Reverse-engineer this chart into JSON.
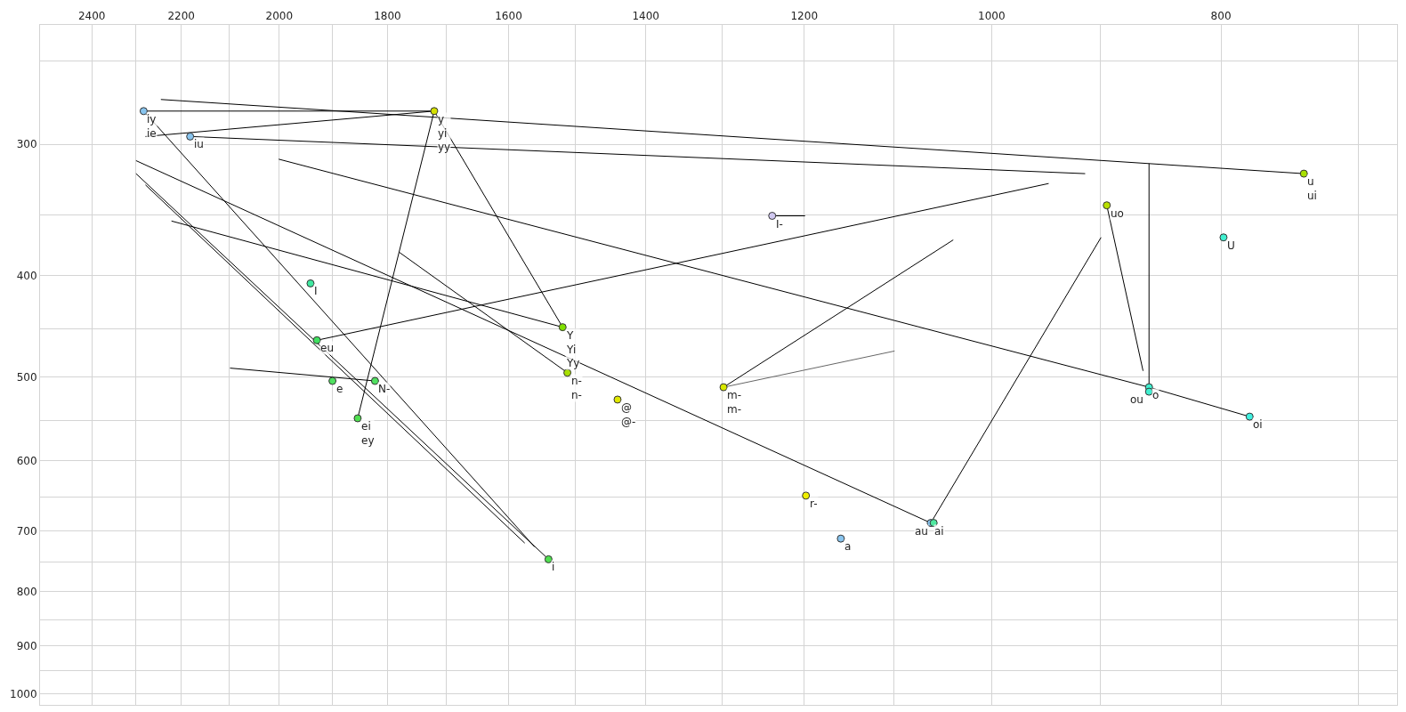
{
  "chart_data": {
    "type": "scatter",
    "xlim": [
      2524,
      674
    ],
    "ylim": [
      1025,
      231
    ],
    "log": "xy",
    "grid": true,
    "xticks": [
      {
        "value": 2400,
        "label": "2400"
      },
      {
        "value": 2300,
        "label": null
      },
      {
        "value": 2200,
        "label": "2200"
      },
      {
        "value": 2100,
        "label": null
      },
      {
        "value": 2000,
        "label": "2000"
      },
      {
        "value": 1900,
        "label": null
      },
      {
        "value": 1800,
        "label": "1800"
      },
      {
        "value": 1700,
        "label": null
      },
      {
        "value": 1600,
        "label": "1600"
      },
      {
        "value": 1500,
        "label": null
      },
      {
        "value": 1400,
        "label": "1400"
      },
      {
        "value": 1300,
        "label": null
      },
      {
        "value": 1200,
        "label": "1200"
      },
      {
        "value": 1100,
        "label": null
      },
      {
        "value": 1000,
        "label": "1000"
      },
      {
        "value": 900,
        "label": null
      },
      {
        "value": 800,
        "label": "800"
      },
      {
        "value": 700,
        "label": null
      }
    ],
    "yticks": [
      {
        "value": 250,
        "label": null
      },
      {
        "value": 300,
        "label": "300"
      },
      {
        "value": 350,
        "label": null
      },
      {
        "value": 400,
        "label": "400"
      },
      {
        "value": 450,
        "label": null
      },
      {
        "value": 500,
        "label": "500"
      },
      {
        "value": 550,
        "label": null
      },
      {
        "value": 600,
        "label": "600"
      },
      {
        "value": 650,
        "label": null
      },
      {
        "value": 700,
        "label": "700"
      },
      {
        "value": 750,
        "label": null
      },
      {
        "value": 800,
        "label": "800"
      },
      {
        "value": 850,
        "label": null
      },
      {
        "value": 900,
        "label": "900"
      },
      {
        "value": 950,
        "label": null
      },
      {
        "value": 1000,
        "label": "1000"
      }
    ],
    "series": [
      {
        "type": "line",
        "color": "#000000",
        "x": [
          2244,
          738
        ],
        "values": [
          272,
          320
        ]
      },
      {
        "type": "line",
        "color": "#000000",
        "x": [
          2282,
          1720
        ],
        "values": [
          279,
          279
        ]
      },
      {
        "type": "line",
        "color": "#000000",
        "x": [
          2278,
          1720
        ],
        "values": [
          295,
          279
        ]
      },
      {
        "type": "line",
        "color": "#000000",
        "x": [
          2181,
          913
        ],
        "values": [
          295,
          320
        ]
      },
      {
        "type": "line",
        "color": "#000000",
        "x": [
          858,
          858
        ],
        "values": [
          313,
          511
        ]
      },
      {
        "type": "line",
        "color": "#000000",
        "x": [
          2001,
          858,
          778
        ],
        "values": [
          310,
          511,
          545
        ]
      },
      {
        "type": "line",
        "color": "#000000",
        "x": [
          2299,
          1061,
          899
        ],
        "values": [
          311,
          688,
          368
        ]
      },
      {
        "type": "line",
        "color": "#000000",
        "x": [
          2282,
          1560
        ],
        "values": [
          279,
          725
        ]
      },
      {
        "type": "line",
        "color": "#000000",
        "x": [
          2299,
          1539
        ],
        "values": [
          320,
          745
        ]
      },
      {
        "type": "line",
        "color": "#000000",
        "x": [
          2278,
          1575
        ],
        "values": [
          328,
          719
        ]
      },
      {
        "type": "line",
        "color": "#000000",
        "x": [
          2221,
          1518
        ],
        "values": [
          355,
          448
        ]
      },
      {
        "type": "line",
        "color": "#000000",
        "x": [
          1780,
          1511
        ],
        "values": [
          380,
          495
        ]
      },
      {
        "type": "line",
        "color": "#000000",
        "x": [
          1928,
          946
        ],
        "values": [
          461,
          327
        ]
      },
      {
        "type": "line",
        "color": "#000000",
        "x": [
          2098,
          1822
        ],
        "values": [
          490,
          504
        ]
      },
      {
        "type": "line",
        "color": "#000000",
        "x": [
          1853,
          1720,
          1518
        ],
        "values": [
          547,
          279,
          448
        ]
      },
      {
        "type": "line",
        "color": "#000000",
        "x": [
          1298,
          1038
        ],
        "values": [
          511,
          370
        ]
      },
      {
        "type": "line",
        "color": "#666666",
        "x": [
          1298,
          1099
        ],
        "values": [
          511,
          472
        ]
      },
      {
        "type": "line",
        "color": "#000000",
        "x": [
          1238,
          1199
        ],
        "values": [
          351,
          351
        ]
      },
      {
        "type": "line",
        "color": "#000000",
        "x": [
          894,
          863
        ],
        "values": [
          343,
          493
        ]
      },
      {
        "marker": "circle",
        "x": [
          2282,
          1720,
          2181,
          738,
          1238,
          894,
          798,
          1940,
          1518,
          1928,
          1511,
          1899,
          1822,
          1298,
          858,
          858,
          1439,
          778,
          1853,
          1198,
          1061,
          1058,
          1158,
          1539
        ],
        "values": [
          279,
          279,
          295,
          320,
          351,
          343,
          368,
          407,
          448,
          461,
          495,
          504,
          504,
          511,
          511,
          516,
          525,
          545,
          547,
          648,
          688,
          688,
          712,
          745
        ],
        "colors": [
          "#88c4ee",
          "#d4e000",
          "#88c4ee",
          "#a8e000",
          "#d0c8f0",
          "#b8e000",
          "#40f0d0",
          "#40e8a0",
          "#80e000",
          "#40e060",
          "#a8e000",
          "#50e060",
          "#50e060",
          "#d8e800",
          "#40f0d0",
          "#40f0d0",
          "#e0e800",
          "#40f0e0",
          "#50e050",
          "#f0f000",
          "#88c4ee",
          "#50e8a0",
          "#88c4ee",
          "#50e050"
        ]
      }
    ],
    "annotations": [
      {
        "text": "iy\nie",
        "x": 2282,
        "y": 279
      },
      {
        "text": "y\nyi\nyy",
        "x": 1720,
        "y": 279
      },
      {
        "text": "iu",
        "x": 2181,
        "y": 295
      },
      {
        "text": "u\nui",
        "x": 738,
        "y": 320
      },
      {
        "text": "I-",
        "x": 1238,
        "y": 351
      },
      {
        "text": "uo",
        "x": 894,
        "y": 343
      },
      {
        "text": "U",
        "x": 798,
        "y": 368
      },
      {
        "text": "I",
        "x": 1940,
        "y": 407
      },
      {
        "text": "Y\nYi\nYy",
        "x": 1518,
        "y": 448
      },
      {
        "text": "eu",
        "x": 1928,
        "y": 461
      },
      {
        "text": "n-\nn-",
        "x": 1511,
        "y": 495
      },
      {
        "text": "e",
        "x": 1899,
        "y": 504
      },
      {
        "text": "N-",
        "x": 1822,
        "y": 504
      },
      {
        "text": "m-\nm-",
        "x": 1298,
        "y": 511
      },
      {
        "text": "o",
        "x": 858,
        "y": 511
      },
      {
        "text": "ou",
        "x": 858,
        "y": 516
      },
      {
        "text": "@\n@-",
        "x": 1439,
        "y": 525
      },
      {
        "text": "oi",
        "x": 778,
        "y": 545
      },
      {
        "text": "ei\ney",
        "x": 1853,
        "y": 547
      },
      {
        "text": "r-",
        "x": 1198,
        "y": 648
      },
      {
        "text": "ai",
        "x": 1061,
        "y": 688
      },
      {
        "text": "au",
        "x": 1058,
        "y": 688
      },
      {
        "text": "a",
        "x": 1158,
        "y": 712
      },
      {
        "text": "i",
        "x": 1539,
        "y": 745
      }
    ]
  }
}
